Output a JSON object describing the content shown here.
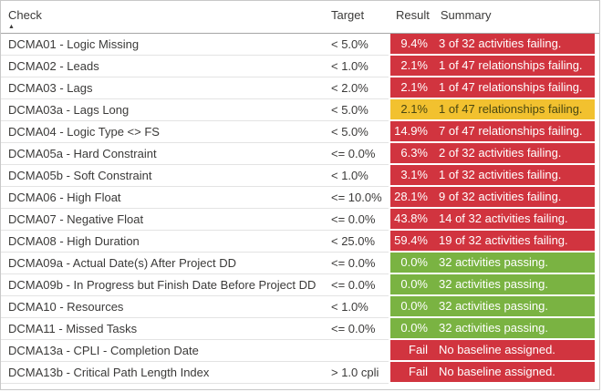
{
  "table": {
    "columns": {
      "check": "Check",
      "target": "Target",
      "result": "Result",
      "summary": "Summary"
    },
    "sort": {
      "column": "Check",
      "direction": "ascending",
      "icon": "sort-ascending-icon",
      "glyph": "▲"
    },
    "status_colors": {
      "fail": "#D1343F",
      "warning": "#F2C12F",
      "pass": "#7AB342"
    },
    "status_text_colors": {
      "fail": "#FFFFFF",
      "warning": "#494712",
      "pass": "#FFFFFF"
    },
    "rows": [
      {
        "check": "DCMA01 - Logic Missing",
        "target": "< 5.0%",
        "result": "9.4%",
        "summary": "3 of 32 activities failing.",
        "status": "fail"
      },
      {
        "check": "DCMA02 - Leads",
        "target": "< 1.0%",
        "result": "2.1%",
        "summary": "1 of 47 relationships failing.",
        "status": "fail"
      },
      {
        "check": "DCMA03 - Lags",
        "target": "< 2.0%",
        "result": "2.1%",
        "summary": "1 of 47 relationships failing.",
        "status": "fail"
      },
      {
        "check": "DCMA03a - Lags Long",
        "target": "< 5.0%",
        "result": "2.1%",
        "summary": "1 of 47 relationships failing.",
        "status": "warning"
      },
      {
        "check": "DCMA04 - Logic Type <> FS",
        "target": "< 5.0%",
        "result": "14.9%",
        "summary": "7 of 47 relationships failing.",
        "status": "fail"
      },
      {
        "check": "DCMA05a - Hard Constraint",
        "target": "<= 0.0%",
        "result": "6.3%",
        "summary": "2 of 32 activities failing.",
        "status": "fail"
      },
      {
        "check": "DCMA05b - Soft Constraint",
        "target": "< 1.0%",
        "result": "3.1%",
        "summary": "1 of 32 activities failing.",
        "status": "fail"
      },
      {
        "check": "DCMA06 - High Float",
        "target": "<= 10.0%",
        "result": "28.1%",
        "summary": "9 of 32 activities failing.",
        "status": "fail"
      },
      {
        "check": "DCMA07 - Negative Float",
        "target": "<= 0.0%",
        "result": "43.8%",
        "summary": "14 of 32 activities failing.",
        "status": "fail"
      },
      {
        "check": "DCMA08 - High Duration",
        "target": "< 25.0%",
        "result": "59.4%",
        "summary": "19 of 32 activities failing.",
        "status": "fail"
      },
      {
        "check": "DCMA09a - Actual Date(s) After Project DD",
        "target": "<= 0.0%",
        "result": "0.0%",
        "summary": "32 activities passing.",
        "status": "pass"
      },
      {
        "check": "DCMA09b - In Progress but Finish Date Before Project DD",
        "target": "<= 0.0%",
        "result": "0.0%",
        "summary": "32 activities passing.",
        "status": "pass"
      },
      {
        "check": "DCMA10 - Resources",
        "target": "< 1.0%",
        "result": "0.0%",
        "summary": "32 activities passing.",
        "status": "pass"
      },
      {
        "check": "DCMA11 - Missed Tasks",
        "target": "<= 0.0%",
        "result": "0.0%",
        "summary": "32 activities passing.",
        "status": "pass"
      },
      {
        "check": "DCMA13a - CPLI - Completion Date",
        "target": "",
        "result": "Fail",
        "summary": "No baseline assigned.",
        "status": "fail"
      },
      {
        "check": "DCMA13b - Critical Path Length Index",
        "target": "> 1.0 cpli",
        "result": "Fail",
        "summary": "No baseline assigned.",
        "status": "fail"
      }
    ]
  }
}
